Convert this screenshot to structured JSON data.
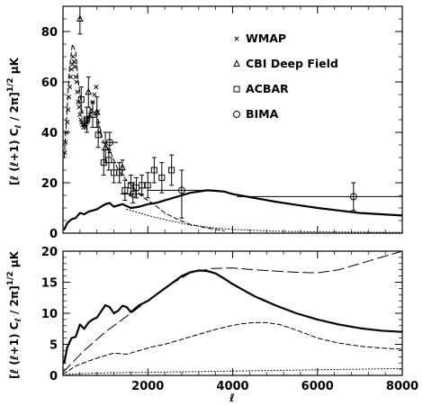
{
  "chart_data": [
    {
      "panel": "top",
      "type": "scatter",
      "ylabel": "[ℓ (ℓ+1) C_ℓ / 2π]^{1/2} μK",
      "xlim": [
        0,
        8000
      ],
      "ylim": [
        0,
        90
      ],
      "yticks": [
        0,
        20,
        40,
        60,
        80
      ],
      "grid": false,
      "legend_position": "top-right",
      "legend": [
        {
          "marker": "cross",
          "label": "WMAP"
        },
        {
          "marker": "triangle",
          "label": "CBI Deep Field"
        },
        {
          "marker": "square",
          "label": "ACBAR"
        },
        {
          "marker": "circle",
          "label": "BIMA"
        }
      ],
      "series": [
        {
          "style": "solid-thick",
          "x": [
            30,
            100,
            200,
            300,
            400,
            500,
            600,
            700,
            800,
            900,
            1000,
            1100,
            1200,
            1300,
            1400,
            1600,
            1800,
            2000,
            2200,
            2400,
            2600,
            2800,
            3000,
            3200,
            3400,
            3600,
            3800,
            4000,
            4500,
            5000,
            5500,
            6000,
            6500,
            7000,
            7500,
            8000
          ],
          "y": [
            1.5,
            4,
            5.5,
            6,
            8,
            7.5,
            8.5,
            9,
            9.5,
            10.5,
            11.5,
            12,
            10.5,
            11,
            11.5,
            10,
            10.5,
            11.5,
            12,
            13,
            14,
            15,
            16,
            16.5,
            17,
            16.8,
            16.5,
            15.5,
            14,
            12.5,
            11.2,
            10,
            9,
            8,
            7.5,
            7
          ]
        },
        {
          "style": "dashed",
          "x": [
            30,
            100,
            150,
            220,
            300,
            350,
            450,
            550,
            650,
            800,
            950,
            1100,
            1300,
            1500,
            1700,
            1900,
            2100,
            2400,
            2700,
            3000,
            3400,
            3800
          ],
          "y": [
            30,
            50,
            65,
            75,
            72,
            62,
            48,
            44,
            48,
            47,
            36,
            33,
            25,
            21,
            17.5,
            14,
            12,
            8,
            5.5,
            3.5,
            2,
            1
          ]
        },
        {
          "style": "dotted",
          "x": [
            1500,
            2000,
            2500,
            3000,
            3500,
            4000,
            5000,
            6000,
            7000,
            8000
          ],
          "y": [
            9.5,
            7,
            5,
            3.2,
            2.2,
            1.5,
            0.8,
            0.5,
            0.4,
            0.3
          ]
        }
      ],
      "points": [
        {
          "set": "WMAP",
          "marker": "cross",
          "x": [
            40,
            60,
            80,
            100,
            120,
            140,
            160,
            180,
            200,
            220,
            240,
            260,
            280,
            300,
            320,
            340,
            360,
            380,
            400,
            420,
            440,
            460,
            480,
            500,
            520,
            540,
            560,
            580,
            600,
            630,
            660,
            700,
            740,
            780,
            820,
            860
          ],
          "y": [
            32,
            36,
            40,
            44,
            49,
            54,
            58,
            62,
            65,
            67,
            70,
            68,
            66,
            62,
            60,
            56,
            52,
            50,
            47,
            45,
            44,
            43,
            42,
            43,
            43,
            42,
            44,
            45,
            46,
            47,
            49,
            52,
            55,
            58,
            48,
            40
          ]
        },
        {
          "set": "CBI Deep Field",
          "marker": "triangle",
          "x": [
            400,
            600,
            800,
            1000,
            1400
          ],
          "y": [
            85,
            56,
            48,
            34,
            26
          ],
          "ylo": [
            79,
            50,
            42,
            28,
            23
          ],
          "yhi": [
            90,
            62,
            54,
            40,
            29
          ]
        },
        {
          "set": "ACBAR",
          "marker": "square",
          "x": [
            430,
            560,
            700,
            830,
            960,
            1080,
            1200,
            1330,
            1460,
            1600,
            1730,
            1860,
            2000,
            2150,
            2330,
            2560
          ],
          "y": [
            53,
            45,
            47,
            39,
            28,
            29,
            24,
            24,
            17,
            19,
            18,
            19,
            19,
            25,
            22,
            25
          ],
          "ylo": [
            48,
            40,
            42,
            34,
            23,
            25,
            20,
            20,
            13,
            15,
            14,
            15,
            14,
            20,
            16,
            19
          ],
          "yhi": [
            58,
            50,
            52,
            44,
            33,
            33,
            28,
            28,
            21,
            23,
            22,
            23,
            24,
            30,
            28,
            31
          ]
        },
        {
          "set": "BIMA",
          "marker": "circle",
          "x": [
            1100,
            1650,
            2800,
            6850
          ],
          "y": [
            36,
            15.5,
            17,
            14.5
          ],
          "ylo": [
            32,
            12,
            6,
            9
          ],
          "yhi": [
            40,
            20,
            25,
            20
          ],
          "xlo": [
            900,
            1350,
            2000,
            4100
          ],
          "xhi": [
            1300,
            1900,
            3400,
            8000
          ]
        }
      ]
    },
    {
      "panel": "bottom",
      "type": "line",
      "xlabel": "ℓ",
      "ylabel": "[ℓ (ℓ+1) C_ℓ / 2π]^{1/2} μK",
      "xlim": [
        0,
        8000
      ],
      "ylim": [
        0,
        20
      ],
      "xticks": [
        2000,
        4000,
        6000,
        8000
      ],
      "yticks": [
        0,
        5,
        10,
        15,
        20
      ],
      "grid": false,
      "series": [
        {
          "style": "solid-thick",
          "x": [
            30,
            100,
            200,
            300,
            400,
            500,
            600,
            700,
            800,
            900,
            1000,
            1100,
            1200,
            1300,
            1400,
            1500,
            1600,
            1800,
            2000,
            2200,
            2400,
            2600,
            2800,
            3000,
            3200,
            3400,
            3600,
            3800,
            4000,
            4500,
            5000,
            5500,
            6000,
            6500,
            7000,
            7500,
            8000
          ],
          "y": [
            2,
            4.5,
            6,
            6.2,
            8.2,
            7.5,
            8.5,
            9,
            9.3,
            10.3,
            11.3,
            11,
            10,
            10.4,
            11.2,
            11,
            10.2,
            11.3,
            12,
            13,
            14,
            15,
            16,
            16.6,
            16.9,
            16.8,
            16.4,
            15.6,
            14.7,
            12.8,
            11.3,
            10,
            9,
            8.2,
            7.6,
            7.2,
            7
          ]
        },
        {
          "style": "long-dashed",
          "x": [
            0,
            500,
            1000,
            1500,
            2000,
            2500,
            3000,
            3500,
            4000,
            4500,
            5000,
            5500,
            6000,
            6500,
            7000,
            7500,
            8000
          ],
          "y": [
            0.5,
            4,
            7,
            9.5,
            12,
            14.5,
            16.5,
            17.2,
            17.3,
            17,
            16.8,
            16.6,
            16.5,
            17,
            18,
            19,
            20
          ]
        },
        {
          "style": "dashed",
          "x": [
            0,
            300,
            600,
            900,
            1200,
            1500,
            1800,
            2100,
            2400,
            2700,
            3000,
            3300,
            3600,
            3900,
            4200,
            4500,
            4800,
            5100,
            5500,
            6000,
            6500,
            7000,
            7500,
            8000
          ],
          "y": [
            0.2,
            1.5,
            2.3,
            3,
            3.6,
            3.4,
            4,
            4.6,
            5,
            5.6,
            6.2,
            6.8,
            7.4,
            7.9,
            8.3,
            8.5,
            8.5,
            8.2,
            7.3,
            6,
            5.2,
            4.7,
            4.4,
            4.2
          ]
        },
        {
          "style": "dotted",
          "x": [
            0,
            500,
            1000,
            2000,
            3000,
            4000,
            5000,
            6000,
            7000,
            8000
          ],
          "y": [
            0.1,
            0.3,
            0.4,
            0.5,
            0.6,
            0.7,
            0.8,
            0.9,
            1.0,
            1.1
          ]
        }
      ]
    }
  ],
  "text": {
    "ylabel_top": "[ℓ (ℓ+1) C",
    "ylabel_sub": "ℓ",
    "ylabel_mid": " / 2π]",
    "ylabel_sup": "1/2",
    "ylabel_unit": " μK",
    "xlabel": "ℓ"
  }
}
